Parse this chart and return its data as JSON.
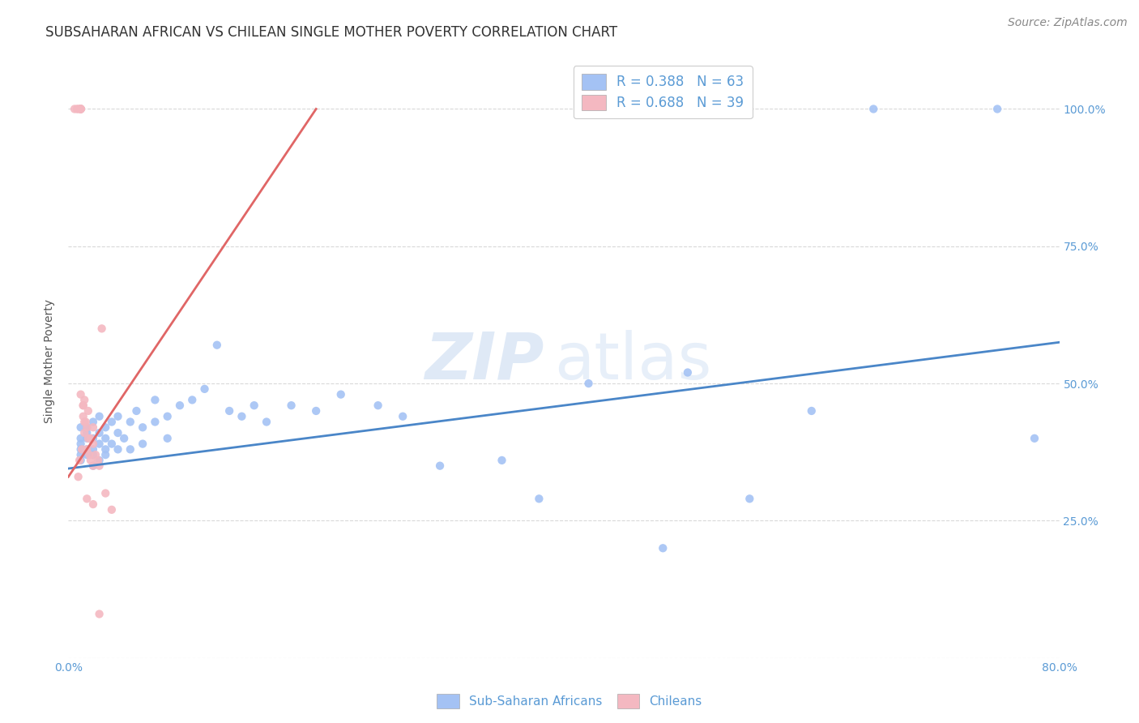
{
  "title": "SUBSAHARAN AFRICAN VS CHILEAN SINGLE MOTHER POVERTY CORRELATION CHART",
  "source": "Source: ZipAtlas.com",
  "ylabel": "Single Mother Poverty",
  "blue_color": "#a4c2f4",
  "pink_color": "#f4b8c1",
  "blue_line_color": "#4a86c8",
  "pink_line_color": "#e06666",
  "watermark_zip": "ZIP",
  "watermark_atlas": "atlas",
  "background_color": "#ffffff",
  "grid_color": "#d9d9d9",
  "tick_color": "#5b9bd5",
  "title_fontsize": 12,
  "axis_label_fontsize": 10,
  "tick_fontsize": 10,
  "source_fontsize": 10,
  "legend_fontsize": 12,
  "blue_scatter_x": [
    0.01,
    0.01,
    0.01,
    0.01,
    0.01,
    0.01,
    0.015,
    0.015,
    0.015,
    0.015,
    0.015,
    0.02,
    0.02,
    0.02,
    0.02,
    0.02,
    0.025,
    0.025,
    0.025,
    0.025,
    0.03,
    0.03,
    0.03,
    0.03,
    0.035,
    0.035,
    0.04,
    0.04,
    0.04,
    0.045,
    0.05,
    0.05,
    0.055,
    0.06,
    0.06,
    0.07,
    0.07,
    0.08,
    0.08,
    0.09,
    0.1,
    0.11,
    0.12,
    0.13,
    0.14,
    0.15,
    0.16,
    0.18,
    0.2,
    0.22,
    0.25,
    0.27,
    0.3,
    0.35,
    0.38,
    0.42,
    0.48,
    0.5,
    0.55,
    0.6,
    0.65,
    0.75,
    0.78
  ],
  "blue_scatter_y": [
    0.37,
    0.39,
    0.42,
    0.4,
    0.38,
    0.36,
    0.41,
    0.38,
    0.4,
    0.37,
    0.42,
    0.38,
    0.4,
    0.35,
    0.43,
    0.37,
    0.39,
    0.41,
    0.36,
    0.44,
    0.38,
    0.4,
    0.37,
    0.42,
    0.39,
    0.43,
    0.41,
    0.38,
    0.44,
    0.4,
    0.43,
    0.38,
    0.45,
    0.42,
    0.39,
    0.43,
    0.47,
    0.44,
    0.4,
    0.46,
    0.47,
    0.49,
    0.57,
    0.45,
    0.44,
    0.46,
    0.43,
    0.46,
    0.45,
    0.48,
    0.46,
    0.44,
    0.35,
    0.36,
    0.29,
    0.5,
    0.2,
    0.52,
    0.29,
    0.45,
    1.0,
    1.0,
    0.4
  ],
  "pink_scatter_x": [
    0.005,
    0.007,
    0.008,
    0.01,
    0.01,
    0.01,
    0.01,
    0.01,
    0.01,
    0.012,
    0.012,
    0.013,
    0.013,
    0.013,
    0.015,
    0.015,
    0.016,
    0.017,
    0.018,
    0.02,
    0.02,
    0.022,
    0.024,
    0.025,
    0.027,
    0.03,
    0.035,
    0.01,
    0.012,
    0.014,
    0.016,
    0.018,
    0.02,
    0.008,
    0.009,
    0.011,
    0.015,
    0.02,
    0.025
  ],
  "pink_scatter_y": [
    1.0,
    1.0,
    1.0,
    1.0,
    1.0,
    1.0,
    1.0,
    1.0,
    1.0,
    0.46,
    0.44,
    0.43,
    0.47,
    0.41,
    0.42,
    0.38,
    0.4,
    0.37,
    0.36,
    0.39,
    0.35,
    0.37,
    0.36,
    0.35,
    0.6,
    0.3,
    0.27,
    0.48,
    0.46,
    0.43,
    0.45,
    0.4,
    0.42,
    0.33,
    0.36,
    0.38,
    0.29,
    0.28,
    0.08
  ],
  "blue_line": {
    "x0": 0.0,
    "x1": 0.8,
    "y0": 0.345,
    "y1": 0.575
  },
  "pink_line": {
    "x0": 0.0,
    "x1": 0.2,
    "y0": 0.33,
    "y1": 1.0
  },
  "xlim": [
    0.0,
    0.8
  ],
  "ylim": [
    0.0,
    1.08
  ],
  "x_ticks": [
    0.0,
    0.1333,
    0.2667,
    0.4,
    0.5333,
    0.6667,
    0.8
  ],
  "y_ticks": [
    0.0,
    0.25,
    0.5,
    0.75,
    1.0
  ],
  "x_tick_labels": [
    "0.0%",
    "",
    "",
    "",
    "",
    "",
    "80.0%"
  ],
  "y_tick_labels_right": [
    "",
    "25.0%",
    "50.0%",
    "75.0%",
    "100.0%"
  ]
}
